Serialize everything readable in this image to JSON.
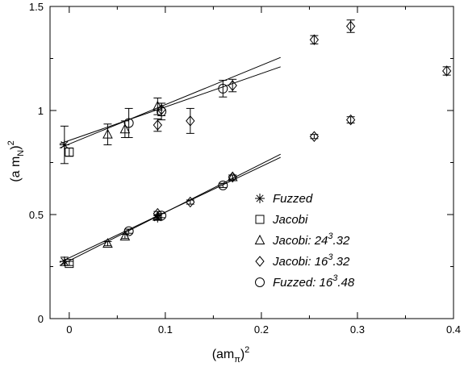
{
  "chart_data": {
    "type": "scatter",
    "title": "",
    "xlabel": "(am_π)^2",
    "ylabel": "(a m_N)^2",
    "xlim": [
      -0.02,
      0.4
    ],
    "ylim": [
      0,
      1.5
    ],
    "x_ticks": [
      {
        "value": 0,
        "label": "0"
      },
      {
        "value": 0.1,
        "label": "0.1"
      },
      {
        "value": 0.2,
        "label": "0.2"
      },
      {
        "value": 0.3,
        "label": "0.3"
      },
      {
        "value": 0.4,
        "label": "0.4"
      }
    ],
    "y_ticks": [
      {
        "value": 0,
        "label": "0"
      },
      {
        "value": 0.5,
        "label": "0.5"
      },
      {
        "value": 1,
        "label": "1"
      },
      {
        "value": 1.5,
        "label": "1.5"
      }
    ],
    "grid": false,
    "legend_position": "bottom-right",
    "legend": [
      {
        "marker": "star",
        "base": "Fuzzed",
        "sup": "",
        "tail": ""
      },
      {
        "marker": "square",
        "base": "Jacobi",
        "sup": "",
        "tail": ""
      },
      {
        "marker": "triangle",
        "base": "Jacobi: 24",
        "sup": "3",
        "tail": ".32"
      },
      {
        "marker": "diamond",
        "base": "Jacobi: 16",
        "sup": "3",
        "tail": ".32"
      },
      {
        "marker": "circle",
        "base": "Fuzzed: 16",
        "sup": "3",
        "tail": ".48"
      }
    ],
    "series": [
      {
        "name": "Fuzzed",
        "marker": "star",
        "points": [
          {
            "x": -0.005,
            "y": 0.835,
            "err": 0.09
          },
          {
            "x": -0.005,
            "y": 0.275,
            "err": 0.02
          },
          {
            "x": 0.092,
            "y": 0.485,
            "err": 0.01
          }
        ]
      },
      {
        "name": "Jacobi",
        "marker": "square",
        "points": [
          {
            "x": 0,
            "y": 0.8,
            "err": 0.02
          },
          {
            "x": 0,
            "y": 0.265,
            "err": 0.01
          }
        ]
      },
      {
        "name": "Jacobi: 24^3.32",
        "marker": "triangle",
        "points": [
          {
            "x": 0.04,
            "y": 0.885,
            "err": 0.05
          },
          {
            "x": 0.058,
            "y": 0.91,
            "err": 0.04
          },
          {
            "x": 0.092,
            "y": 1.02,
            "err": 0.04
          },
          {
            "x": 0.04,
            "y": 0.36,
            "err": 0.01
          },
          {
            "x": 0.058,
            "y": 0.395,
            "err": 0.01
          },
          {
            "x": 0.092,
            "y": 0.49,
            "err": 0.01
          },
          {
            "x": 0.17,
            "y": 0.68,
            "err": 0.01
          }
        ]
      },
      {
        "name": "Jacobi: 16^3.32",
        "marker": "diamond",
        "points": [
          {
            "x": 0.092,
            "y": 0.93,
            "err": 0.03
          },
          {
            "x": 0.096,
            "y": 1.005,
            "err": 0.03
          },
          {
            "x": 0.126,
            "y": 0.95,
            "err": 0.06
          },
          {
            "x": 0.17,
            "y": 1.12,
            "err": 0.03
          },
          {
            "x": 0.255,
            "y": 1.34,
            "err": 0.02
          },
          {
            "x": 0.293,
            "y": 1.405,
            "err": 0.03
          },
          {
            "x": 0.393,
            "y": 1.19,
            "err": 0.02
          },
          {
            "x": 0.255,
            "y": 0.875,
            "err": 0.01
          },
          {
            "x": 0.293,
            "y": 0.955,
            "err": 0.015
          },
          {
            "x": 0.092,
            "y": 0.505,
            "err": 0.01
          },
          {
            "x": 0.126,
            "y": 0.56,
            "err": 0.01
          },
          {
            "x": 0.17,
            "y": 0.68,
            "err": 0.01
          }
        ]
      },
      {
        "name": "Fuzzed: 16^3.48",
        "marker": "circle",
        "points": [
          {
            "x": 0.062,
            "y": 0.94,
            "err": 0.07
          },
          {
            "x": 0.096,
            "y": 0.995,
            "err": 0.04
          },
          {
            "x": 0.16,
            "y": 1.105,
            "err": 0.04
          },
          {
            "x": 0.062,
            "y": 0.42,
            "err": 0.01
          },
          {
            "x": 0.096,
            "y": 0.495,
            "err": 0.01
          },
          {
            "x": 0.16,
            "y": 0.64,
            "err": 0.01
          }
        ]
      }
    ],
    "fit_lines": [
      {
        "x": [
          -0.01,
          0.22
        ],
        "y": [
          0.82,
          1.255
        ]
      },
      {
        "x": [
          -0.01,
          0.22
        ],
        "y": [
          0.84,
          1.21
        ]
      },
      {
        "x": [
          -0.01,
          0.22
        ],
        "y": [
          0.255,
          0.79
        ]
      },
      {
        "x": [
          -0.01,
          0.22
        ],
        "y": [
          0.27,
          0.775
        ]
      }
    ]
  }
}
